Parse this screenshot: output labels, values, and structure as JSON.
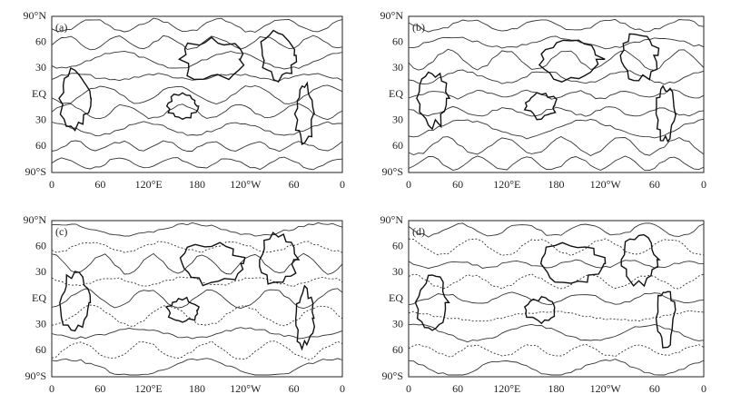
{
  "panels": [
    {
      "label": "(a)"
    },
    {
      "label": "(b)"
    },
    {
      "label": "(c)"
    },
    {
      "label": "(d)"
    }
  ],
  "y_axis_labels": [
    "90°N",
    "60",
    "30",
    "EQ",
    "30",
    "60",
    "90°S"
  ],
  "x_axis_labels": [
    "0",
    "60",
    "120°E",
    "180",
    "120°W",
    "60",
    "0"
  ]
}
